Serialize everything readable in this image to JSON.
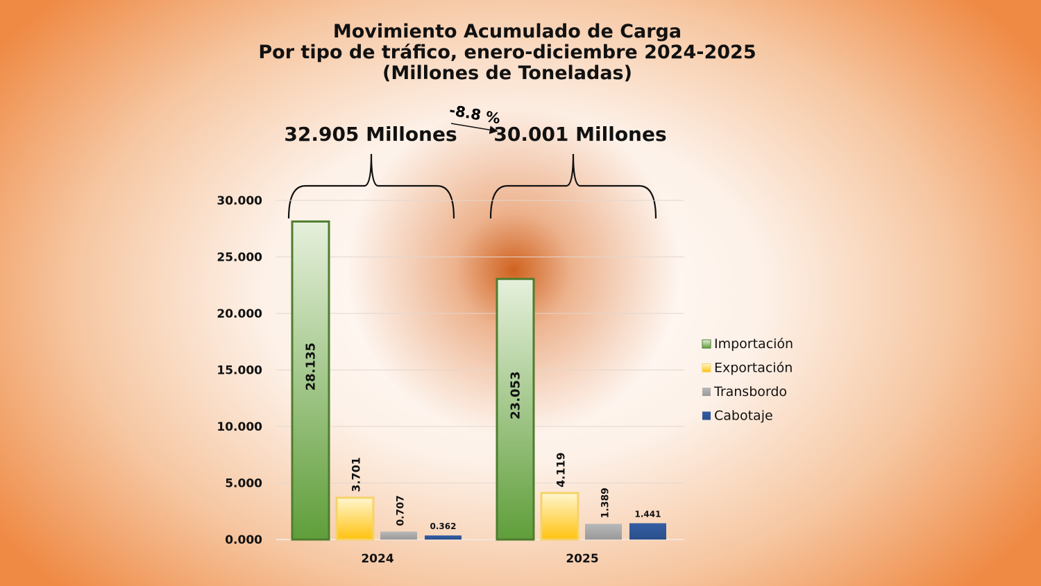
{
  "chart_data": {
    "type": "bar",
    "title": [
      "Movimiento Acumulado de Carga",
      "Por tipo de tráfico, enero-diciembre 2024-2025",
      "(Millones de Toneladas)"
    ],
    "categories": [
      "2024",
      "2025"
    ],
    "series": [
      {
        "name": "Importación",
        "values": [
          28.135,
          23.053
        ],
        "labels": [
          "28.135",
          "23.053"
        ],
        "color": "#6aa843"
      },
      {
        "name": "Exportación",
        "values": [
          3.701,
          4.119
        ],
        "labels": [
          "3.701",
          "4.119"
        ],
        "color": "#ffc719"
      },
      {
        "name": "Transbordo",
        "values": [
          0.707,
          1.389
        ],
        "labels": [
          "0.707",
          "1.389"
        ],
        "color": "#a5a5a5"
      },
      {
        "name": "Cabotaje",
        "values": [
          0.362,
          1.441
        ],
        "labels": [
          "0.362",
          "1.441"
        ],
        "color": "#2f5597"
      }
    ],
    "ylim": [
      0,
      30
    ],
    "yticks": [
      0,
      5,
      10,
      15,
      20,
      25,
      30
    ],
    "ytick_labels": [
      "0.000",
      "5.000",
      "10.000",
      "15.000",
      "20.000",
      "25.000",
      "30.000"
    ],
    "grid": true,
    "legend": "right",
    "annotations": {
      "total_2024": "32.905 Millones",
      "total_2025": "30.001 Millones",
      "change": "-8.8 %"
    }
  }
}
